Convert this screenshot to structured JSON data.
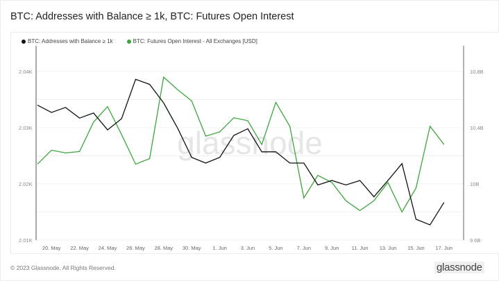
{
  "header": {
    "title": "BTC: Addresses with Balance ≥ 1k, BTC: Futures Open Interest"
  },
  "legend": [
    {
      "label": "BTC: Addresses with Balance ≥ 1k",
      "color": "#111111"
    },
    {
      "label": "BTC: Futures Open Interest - All Exchanges [USD]",
      "color": "#3aa63a"
    }
  ],
  "watermark": "glassnode",
  "footer": {
    "copyright": "© 2023 Glassnode. All Rights Reserved.",
    "logo": "glassnode"
  },
  "chart_data": {
    "type": "line",
    "title": "BTC: Addresses with Balance ≥ 1k, BTC: Futures Open Interest",
    "x": [
      "19 May",
      "20 May",
      "21 May",
      "22 May",
      "23 May",
      "24 May",
      "25 May",
      "26 May",
      "27 May",
      "28 May",
      "29 May",
      "30 May",
      "31 May",
      "1 Jun",
      "2 Jun",
      "3 Jun",
      "4 Jun",
      "5 Jun",
      "6 Jun",
      "7 Jun",
      "8 Jun",
      "9 Jun",
      "10 Jun",
      "11 Jun",
      "12 Jun",
      "13 Jun",
      "14 Jun",
      "15 Jun",
      "16 Jun",
      "17 Jun"
    ],
    "x_tick_labels": [
      "20. May",
      "22. May",
      "24. May",
      "26. May",
      "28. May",
      "30. May",
      "1. Jun",
      "3. Jun",
      "5. Jun",
      "7. Jun",
      "9. Jun",
      "11. Jun",
      "13. Jun",
      "15. Jun",
      "17. Jun"
    ],
    "series": [
      {
        "name": "BTC: Addresses with Balance ≥ 1k",
        "axis": "left",
        "color": "#111111",
        "values": [
          2034.0,
          2032.7,
          2033.6,
          2031.7,
          2032.6,
          2029.6,
          2031.6,
          2038.6,
          2037.7,
          2034.4,
          2029.9,
          2024.7,
          2023.7,
          2024.7,
          2028.6,
          2029.8,
          2025.7,
          2025.7,
          2023.7,
          2023.7,
          2019.8,
          2020.6,
          2019.8,
          2020.6,
          2017.7,
          2020.6,
          2023.6,
          2013.7,
          2012.7,
          2016.7
        ]
      },
      {
        "name": "BTC: Futures Open Interest - All Exchanges [USD]",
        "axis": "right",
        "color": "#3aa63a",
        "unit": "B",
        "values": [
          10.14,
          10.24,
          10.22,
          10.23,
          10.44,
          10.55,
          10.35,
          10.14,
          10.18,
          10.76,
          10.67,
          10.59,
          10.34,
          10.37,
          10.47,
          10.45,
          10.28,
          10.58,
          10.41,
          9.9,
          10.06,
          10.01,
          9.88,
          9.81,
          9.88,
          10.01,
          9.8,
          9.97,
          10.41,
          10.28
        ]
      }
    ],
    "left_axis": {
      "ticks": [
        "2.04K",
        "2.03K",
        "2.02K",
        "2.01K"
      ],
      "tick_values": [
        2040,
        2030,
        2020,
        2010
      ],
      "ylim": [
        2010,
        2040
      ]
    },
    "right_axis": {
      "ticks": [
        "10.8B",
        "10.4B",
        "10B",
        "9.6B"
      ],
      "tick_values": [
        10.8,
        10.4,
        10.0,
        9.6
      ],
      "ylim": [
        9.6,
        10.8
      ]
    },
    "grid": true,
    "legend_position": "top-left"
  }
}
